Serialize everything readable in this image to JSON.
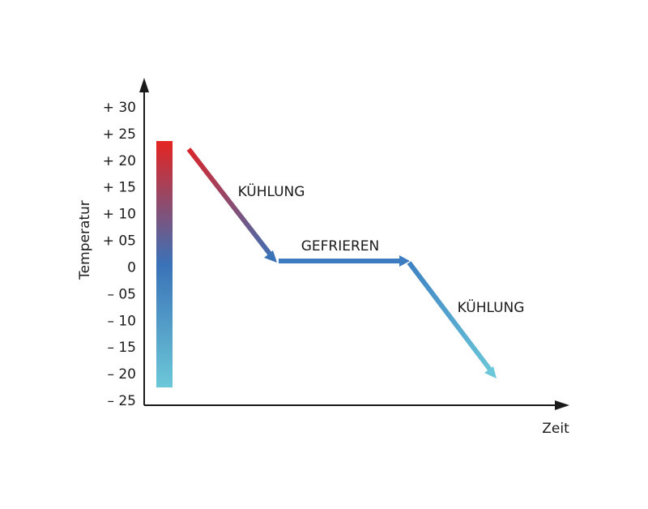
{
  "axes": {
    "y_label": "Temperatur",
    "x_label": "Zeit",
    "y_ticks": [
      "+ 30",
      "+ 25",
      "+ 20",
      "+ 15",
      "+ 10",
      "+ 05",
      "0",
      "– 05",
      "– 10",
      "– 15",
      "– 20",
      "– 25"
    ]
  },
  "phases": [
    "KÜHLUNG",
    "GEFRIEREN",
    "KÜHLUNG"
  ]
}
